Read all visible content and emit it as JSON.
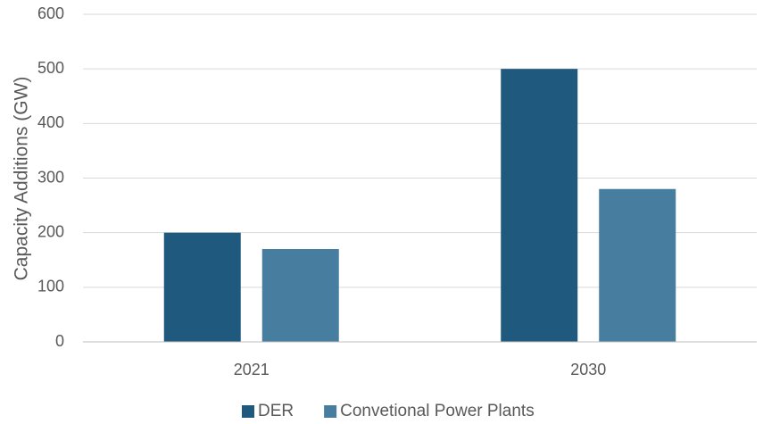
{
  "chart_data": {
    "type": "bar",
    "title": "",
    "xlabel": "",
    "ylabel": "Capacity Additions (GW)",
    "categories": [
      "2021",
      "2030"
    ],
    "series": [
      {
        "name": "DER",
        "values": [
          200,
          500
        ],
        "color": "#1f5a7e"
      },
      {
        "name": "Convetional Power Plants",
        "values": [
          170,
          280
        ],
        "color": "#477d9f"
      }
    ],
    "ylim": [
      0,
      600
    ],
    "yticks": [
      0,
      100,
      200,
      300,
      400,
      500,
      600
    ],
    "grid": true,
    "legend_position": "bottom"
  }
}
